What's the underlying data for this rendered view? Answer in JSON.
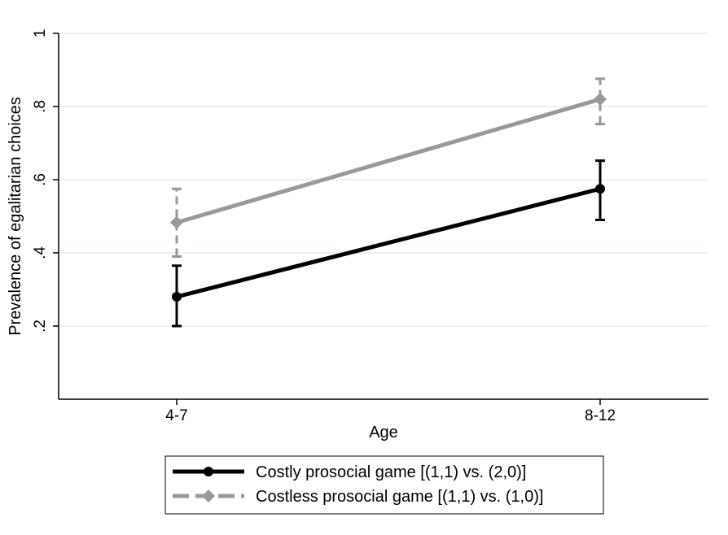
{
  "chart_data": {
    "type": "line",
    "categories": [
      "4-7",
      "8-12"
    ],
    "xlabel": "Age",
    "ylabel": "Prevalence of egalitarian choices",
    "ylim": [
      0,
      1.0
    ],
    "yticks": [
      0.2,
      0.4,
      0.6,
      0.8,
      1.0
    ],
    "yticklabels": [
      ".2",
      ".4",
      ".6",
      ".8",
      "1"
    ],
    "grid": true,
    "legend_position": "bottom",
    "series": [
      {
        "name": "Costly prosocial game [(1,1) vs. (2,0)]",
        "values": [
          0.28,
          0.575
        ],
        "ci_low": [
          0.2,
          0.49
        ],
        "ci_high": [
          0.365,
          0.652
        ],
        "color": "#000000",
        "marker": "circle",
        "dashed_ci": false
      },
      {
        "name": "Costless prosocial game [(1,1) vs. (1,0)]",
        "values": [
          0.483,
          0.82
        ],
        "ci_low": [
          0.39,
          0.752
        ],
        "ci_high": [
          0.575,
          0.876
        ],
        "color": "#999999",
        "marker": "diamond",
        "dashed_ci": true
      }
    ]
  },
  "colors": {
    "grid": "#e3eef2",
    "axis": "#000000"
  }
}
